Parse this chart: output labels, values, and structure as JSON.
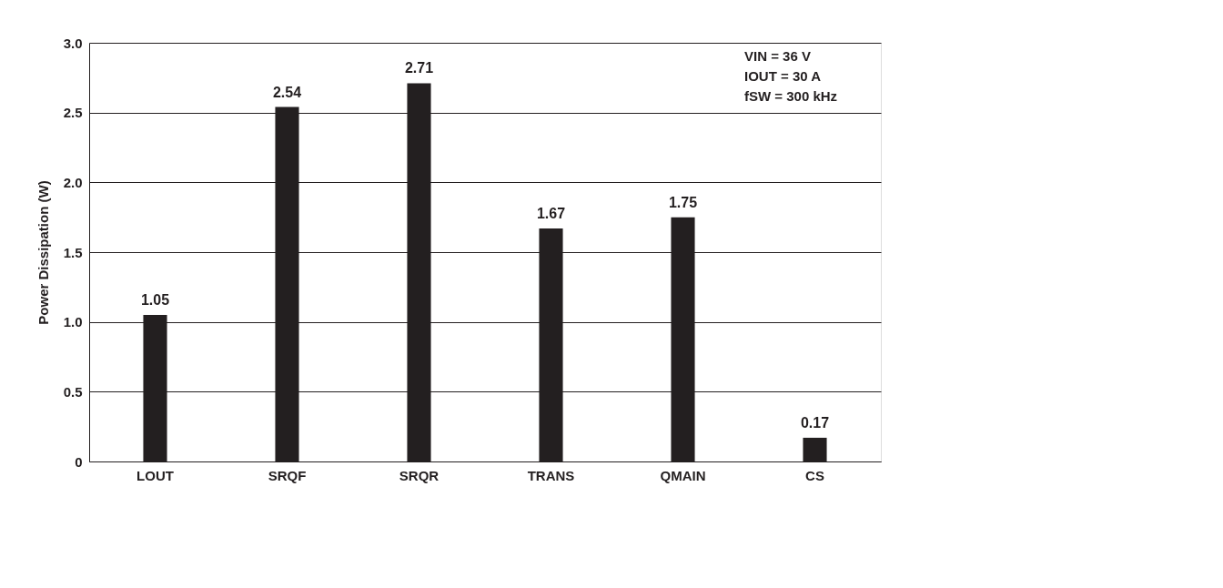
{
  "chart_data": {
    "type": "bar",
    "ylabel": "Power Dissipation (W)",
    "categories": [
      "LOUT",
      "SRQF",
      "SRQR",
      "TRANS",
      "QMAIN",
      "CS"
    ],
    "values": [
      1.05,
      2.54,
      2.71,
      1.67,
      1.75,
      0.17
    ],
    "color": "#231f20",
    "data_labels": true,
    "ylim": [
      0,
      3.0
    ],
    "yticks": [
      0,
      0.5,
      {
        "value": 1,
        "label": "1.0"
      },
      1.5,
      {
        "value": 2,
        "label": "2.0"
      },
      2.5,
      {
        "value": 3,
        "label": "3.0"
      }
    ],
    "grid": "y",
    "annotations": [
      "VIN = 36 V",
      "IOUT = 30 A",
      "fSW = 300 kHz"
    ]
  }
}
